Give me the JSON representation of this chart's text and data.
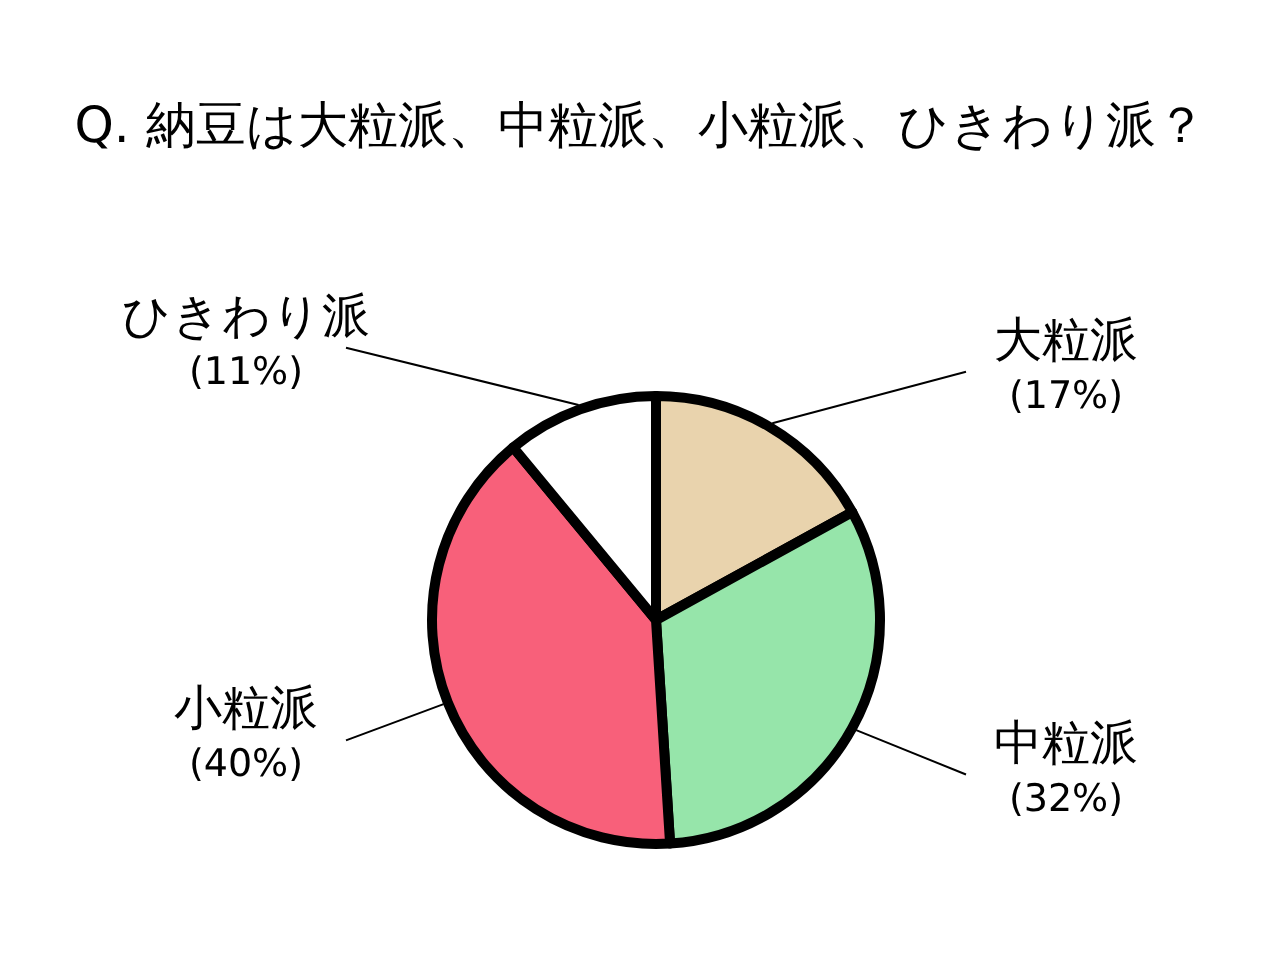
{
  "chart_data": {
    "type": "pie",
    "title": "Q. 納豆は大粒派、中粒派、小粒派、ひきわり派？",
    "categories": [
      "大粒派",
      "中粒派",
      "小粒派",
      "ひきわり派"
    ],
    "values": [
      17,
      32,
      40,
      11
    ],
    "colors": [
      "#e9d3ad",
      "#96e5aa",
      "#f8607a",
      "#ffffff"
    ],
    "value_labels": [
      "(17%)",
      "(32%)",
      "(40%)",
      "(11%)"
    ]
  }
}
